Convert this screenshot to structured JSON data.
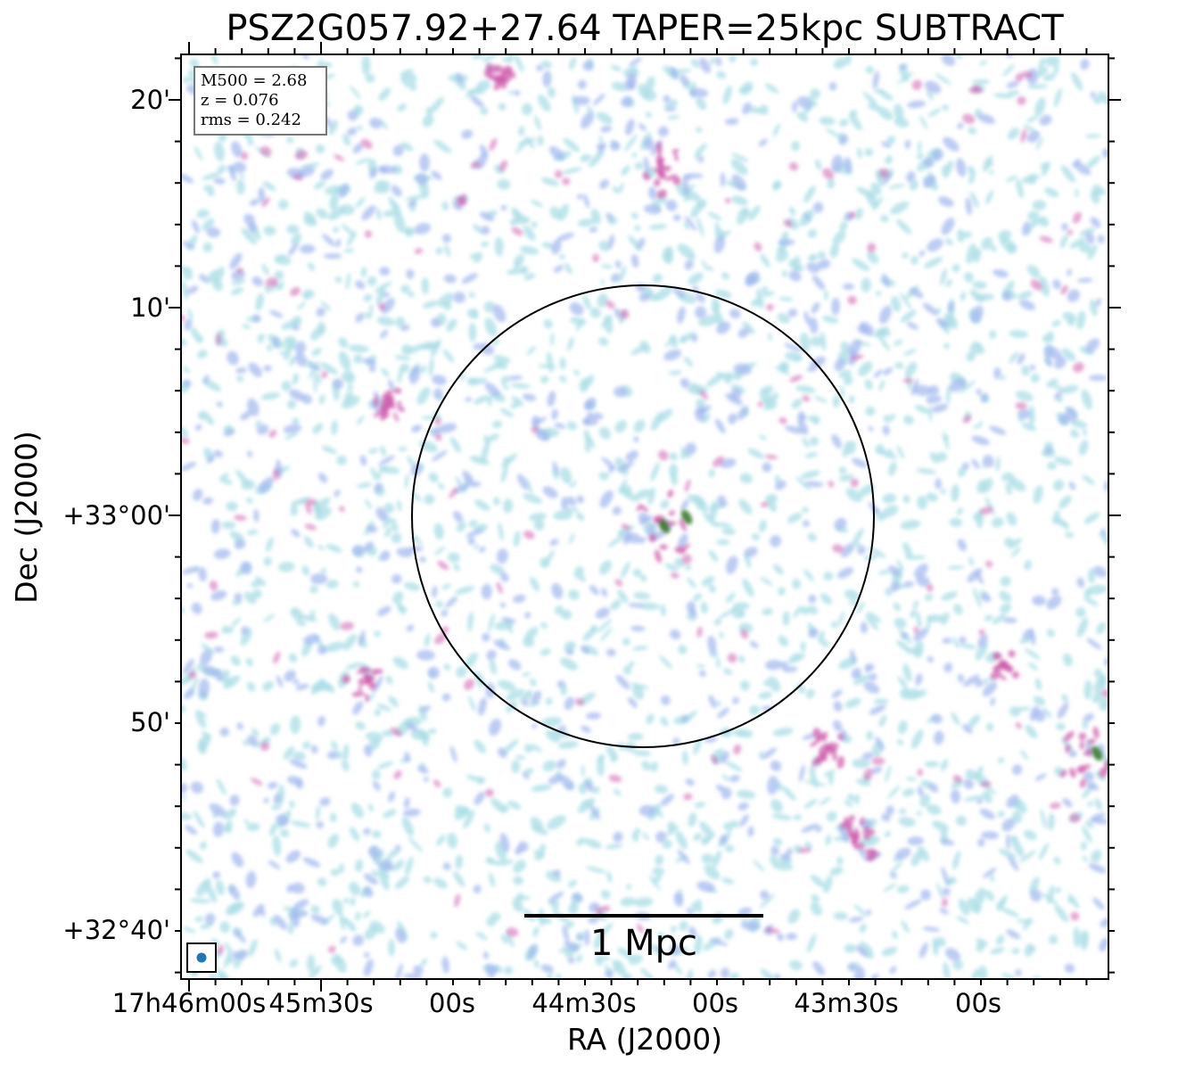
{
  "plot": {
    "title": "PSZ2G057.92+27.64 TAPER=25kpc SUBTRACT",
    "xlabel": "RA (J2000)",
    "ylabel": "Dec (J2000)",
    "y_ticks": [
      "20'",
      "10'",
      "+33°00'",
      "50'",
      "+32°40'"
    ],
    "x_ticks": [
      "17h46m00s",
      "45m30s",
      "00s",
      "44m30s",
      "00s",
      "43m30s",
      "00s"
    ]
  },
  "info": {
    "line1": "M500 = 2.68",
    "line2": "z = 0.076",
    "line3": "rms = 0.242"
  },
  "scalebar": {
    "label": "1 Mpc"
  },
  "colors": {
    "noise_light": "#a9dde6",
    "noise_mid": "#9fb6ee",
    "source": "#cf5fae",
    "core": "#3a7d2c",
    "beam": "#1f77b4"
  }
}
